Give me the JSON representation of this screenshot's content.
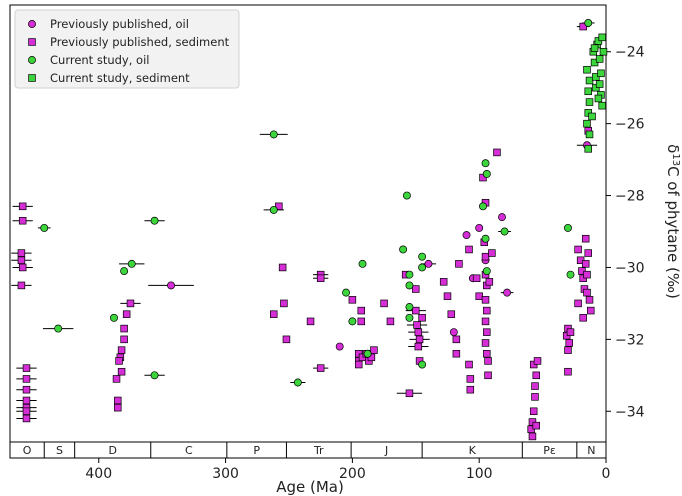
{
  "chart_data": {
    "type": "scatter",
    "title": "",
    "xlabel": "Age (Ma)",
    "ylabel": "δ13C of phytane (‰)",
    "ylabel_parts": {
      "pre": "δ",
      "sup": "13",
      "post": "C of phytane (",
      "unit": "‰",
      "close": ")"
    },
    "xlim": [
      470,
      0
    ],
    "ylim": [
      -35.3,
      -22.7
    ],
    "x_ticks": [
      {
        "value": 400,
        "label": "400"
      },
      {
        "value": 300,
        "label": "300"
      },
      {
        "value": 200,
        "label": "200"
      },
      {
        "value": 100,
        "label": "100"
      },
      {
        "value": 0,
        "label": "0"
      }
    ],
    "y_ticks": [
      {
        "value": -24,
        "label": "−24"
      },
      {
        "value": -26,
        "label": "−26"
      },
      {
        "value": -28,
        "label": "−28"
      },
      {
        "value": -30,
        "label": "−30"
      },
      {
        "value": -32,
        "label": "−32"
      },
      {
        "value": -34,
        "label": "−34"
      }
    ],
    "y_axis_side": "right",
    "grid": false,
    "legend_position": "top-left",
    "colors": {
      "previous": "#d62ed6",
      "current": "#3cd63c",
      "edge": "#000000"
    },
    "periods": [
      {
        "label": "O",
        "start": 470,
        "end": 443
      },
      {
        "label": "S",
        "start": 443,
        "end": 419
      },
      {
        "label": "D",
        "start": 419,
        "end": 359
      },
      {
        "label": "C",
        "start": 359,
        "end": 299
      },
      {
        "label": "P",
        "start": 299,
        "end": 252
      },
      {
        "label": "Tr",
        "start": 252,
        "end": 201
      },
      {
        "label": "J",
        "start": 201,
        "end": 145
      },
      {
        "label": "K",
        "start": 145,
        "end": 66
      },
      {
        "label": "Pε",
        "start": 66,
        "end": 23
      },
      {
        "label": "N",
        "start": 23,
        "end": 0
      }
    ],
    "series": [
      {
        "name": "Previously published, oil",
        "marker": "circle",
        "color": "#d62ed6",
        "points": [
          {
            "x": 343,
            "y": -30.5,
            "xerr": 18
          },
          {
            "x": 210,
            "y": -32.2
          },
          {
            "x": 140,
            "y": -29.9,
            "xerr": 6
          },
          {
            "x": 120,
            "y": -31.8
          },
          {
            "x": 110,
            "y": -29.1
          },
          {
            "x": 105,
            "y": -30.3
          },
          {
            "x": 100,
            "y": -28.9
          },
          {
            "x": 95,
            "y": -29.8
          },
          {
            "x": 82,
            "y": -28.6
          },
          {
            "x": 78,
            "y": -30.7,
            "xerr": 5
          },
          {
            "x": 15,
            "y": -26.6,
            "xerr": 8
          }
        ]
      },
      {
        "name": "Previously published, sediment",
        "marker": "square",
        "color": "#d62ed6",
        "points": [
          {
            "x": 460,
            "y": -28.3,
            "xerr": 8
          },
          {
            "x": 460,
            "y": -28.7,
            "xerr": 8
          },
          {
            "x": 461,
            "y": -29.6,
            "xerr": 8
          },
          {
            "x": 461,
            "y": -29.8,
            "xerr": 8
          },
          {
            "x": 460,
            "y": -30.0,
            "xerr": 8
          },
          {
            "x": 461,
            "y": -30.5,
            "xerr": 8
          },
          {
            "x": 457,
            "y": -32.8,
            "xerr": 8
          },
          {
            "x": 457,
            "y": -33.1,
            "xerr": 8
          },
          {
            "x": 457,
            "y": -33.4,
            "xerr": 8
          },
          {
            "x": 457,
            "y": -33.7,
            "xerr": 8
          },
          {
            "x": 457,
            "y": -33.9,
            "xerr": 8
          },
          {
            "x": 457,
            "y": -34.0,
            "xerr": 8
          },
          {
            "x": 457,
            "y": -34.2,
            "xerr": 8
          },
          {
            "x": 375,
            "y": -31.0,
            "xerr": 8
          },
          {
            "x": 378,
            "y": -31.3
          },
          {
            "x": 380,
            "y": -31.7
          },
          {
            "x": 380,
            "y": -32.0
          },
          {
            "x": 382,
            "y": -32.3
          },
          {
            "x": 383,
            "y": -32.5
          },
          {
            "x": 384,
            "y": -32.6
          },
          {
            "x": 382,
            "y": -32.9
          },
          {
            "x": 386,
            "y": -33.1
          },
          {
            "x": 385,
            "y": -33.7
          },
          {
            "x": 385,
            "y": -33.9
          },
          {
            "x": 262,
            "y": -31.3
          },
          {
            "x": 258,
            "y": -28.3
          },
          {
            "x": 255,
            "y": -30.0
          },
          {
            "x": 254,
            "y": -31.0
          },
          {
            "x": 252,
            "y": -32.0
          },
          {
            "x": 233,
            "y": -31.5
          },
          {
            "x": 225,
            "y": -30.2,
            "xerr": 6
          },
          {
            "x": 225,
            "y": -30.3,
            "xerr": 6
          },
          {
            "x": 225,
            "y": -32.8,
            "xerr": 6
          },
          {
            "x": 200,
            "y": -30.9
          },
          {
            "x": 193,
            "y": -31.2
          },
          {
            "x": 193,
            "y": -31.5
          },
          {
            "x": 195,
            "y": -32.4
          },
          {
            "x": 195,
            "y": -32.6
          },
          {
            "x": 195,
            "y": -32.7
          },
          {
            "x": 192,
            "y": -32.5
          },
          {
            "x": 189,
            "y": -32.4
          },
          {
            "x": 187,
            "y": -32.6
          },
          {
            "x": 185,
            "y": -32.5
          },
          {
            "x": 183,
            "y": -32.3
          },
          {
            "x": 175,
            "y": -31.0
          },
          {
            "x": 170,
            "y": -31.5
          },
          {
            "x": 158,
            "y": -30.2
          },
          {
            "x": 155,
            "y": -33.5,
            "xerr": 10
          },
          {
            "x": 150,
            "y": -30.6
          },
          {
            "x": 150,
            "y": -31.2,
            "xerr": 8
          },
          {
            "x": 149,
            "y": -31.6,
            "xerr": 8
          },
          {
            "x": 148,
            "y": -31.8,
            "xerr": 8
          },
          {
            "x": 147,
            "y": -32.0,
            "xerr": 8
          },
          {
            "x": 148,
            "y": -32.2,
            "xerr": 8
          },
          {
            "x": 147,
            "y": -32.6
          },
          {
            "x": 145,
            "y": -31.4
          },
          {
            "x": 128,
            "y": -30.4
          },
          {
            "x": 125,
            "y": -30.8
          },
          {
            "x": 122,
            "y": -31.3
          },
          {
            "x": 118,
            "y": -32.0
          },
          {
            "x": 118,
            "y": -32.4
          },
          {
            "x": 116,
            "y": -29.9
          },
          {
            "x": 108,
            "y": -29.5
          },
          {
            "x": 108,
            "y": -32.7
          },
          {
            "x": 107,
            "y": -33.1
          },
          {
            "x": 107,
            "y": -33.4
          },
          {
            "x": 102,
            "y": -30.3
          },
          {
            "x": 100,
            "y": -30.8
          },
          {
            "x": 97,
            "y": -27.5
          },
          {
            "x": 95,
            "y": -28.2
          },
          {
            "x": 96,
            "y": -29.3
          },
          {
            "x": 95,
            "y": -29.7
          },
          {
            "x": 95,
            "y": -30.2
          },
          {
            "x": 94,
            "y": -30.5
          },
          {
            "x": 95,
            "y": -30.9
          },
          {
            "x": 94,
            "y": -31.2
          },
          {
            "x": 95,
            "y": -31.5
          },
          {
            "x": 94,
            "y": -31.8
          },
          {
            "x": 95,
            "y": -32.1
          },
          {
            "x": 94,
            "y": -32.4
          },
          {
            "x": 93,
            "y": -32.6
          },
          {
            "x": 93,
            "y": -33.0
          },
          {
            "x": 86,
            "y": -26.8
          },
          {
            "x": 90,
            "y": -29.6
          },
          {
            "x": 92,
            "y": -30.4
          },
          {
            "x": 57,
            "y": -32.7
          },
          {
            "x": 55,
            "y": -33.0
          },
          {
            "x": 56,
            "y": -33.3
          },
          {
            "x": 56,
            "y": -33.6
          },
          {
            "x": 57,
            "y": -34.0
          },
          {
            "x": 58,
            "y": -34.3
          },
          {
            "x": 59,
            "y": -34.5
          },
          {
            "x": 58,
            "y": -34.7
          },
          {
            "x": 55,
            "y": -34.4
          },
          {
            "x": 54,
            "y": -32.6
          },
          {
            "x": 30,
            "y": -31.7
          },
          {
            "x": 31,
            "y": -31.9
          },
          {
            "x": 29,
            "y": -32.1
          },
          {
            "x": 30,
            "y": -32.3
          },
          {
            "x": 30,
            "y": -32.9
          },
          {
            "x": 28,
            "y": -31.8
          },
          {
            "x": 22,
            "y": -29.5
          },
          {
            "x": 20,
            "y": -29.8
          },
          {
            "x": 19,
            "y": -30.1
          },
          {
            "x": 18,
            "y": -30.3
          },
          {
            "x": 17,
            "y": -30.6
          },
          {
            "x": 16,
            "y": -29.2
          },
          {
            "x": 16,
            "y": -29.9
          },
          {
            "x": 15,
            "y": -30.2
          },
          {
            "x": 15,
            "y": -30.7
          },
          {
            "x": 14,
            "y": -29.6
          },
          {
            "x": 13,
            "y": -30.9
          },
          {
            "x": 12,
            "y": -31.2
          },
          {
            "x": 22,
            "y": -31.0
          },
          {
            "x": 18,
            "y": -31.4
          },
          {
            "x": 14,
            "y": -26.2
          },
          {
            "x": 18,
            "y": -23.3,
            "xerr": 5
          }
        ]
      },
      {
        "name": "Current study, oil",
        "marker": "circle",
        "color": "#3cd63c",
        "points": [
          {
            "x": 443,
            "y": -28.9,
            "xerr": 5
          },
          {
            "x": 432,
            "y": -31.7,
            "xerr": 12
          },
          {
            "x": 388,
            "y": -31.4
          },
          {
            "x": 380,
            "y": -30.1
          },
          {
            "x": 374,
            "y": -29.9,
            "xerr": 10
          },
          {
            "x": 356,
            "y": -28.7,
            "xerr": 8
          },
          {
            "x": 356,
            "y": -33.0,
            "xerr": 8
          },
          {
            "x": 262,
            "y": -26.3,
            "xerr": 11
          },
          {
            "x": 262,
            "y": -28.4,
            "xerr": 8
          },
          {
            "x": 243,
            "y": -33.2,
            "xerr": 6
          },
          {
            "x": 205,
            "y": -30.7
          },
          {
            "x": 200,
            "y": -31.5
          },
          {
            "x": 188,
            "y": -32.4
          },
          {
            "x": 192,
            "y": -29.9
          },
          {
            "x": 160,
            "y": -29.5
          },
          {
            "x": 157,
            "y": -28.0
          },
          {
            "x": 155,
            "y": -30.2
          },
          {
            "x": 155,
            "y": -30.5
          },
          {
            "x": 155,
            "y": -31.1
          },
          {
            "x": 155,
            "y": -31.4
          },
          {
            "x": 145,
            "y": -29.7
          },
          {
            "x": 145,
            "y": -30.0
          },
          {
            "x": 145,
            "y": -32.7
          },
          {
            "x": 97,
            "y": -28.3
          },
          {
            "x": 95,
            "y": -27.1
          },
          {
            "x": 94,
            "y": -27.4
          },
          {
            "x": 95,
            "y": -29.2
          },
          {
            "x": 94,
            "y": -30.1
          },
          {
            "x": 80,
            "y": -29.0,
            "xerr": 5
          },
          {
            "x": 30,
            "y": -28.9
          },
          {
            "x": 28,
            "y": -30.2
          },
          {
            "x": 14,
            "y": -23.2,
            "xerr": 5
          }
        ]
      },
      {
        "name": "Current study, sediment",
        "marker": "square",
        "color": "#3cd63c",
        "points": [
          {
            "x": 15,
            "y": -24.5
          },
          {
            "x": 13,
            "y": -24.8
          },
          {
            "x": 14,
            "y": -25.1
          },
          {
            "x": 13,
            "y": -25.4
          },
          {
            "x": 14,
            "y": -25.7
          },
          {
            "x": 15,
            "y": -26.0
          },
          {
            "x": 13,
            "y": -26.3
          },
          {
            "x": 14,
            "y": -26.7
          },
          {
            "x": 10,
            "y": -24.0
          },
          {
            "x": 9,
            "y": -24.3
          },
          {
            "x": 8,
            "y": -24.7
          },
          {
            "x": 8,
            "y": -25.0
          },
          {
            "x": 7,
            "y": -23.8
          },
          {
            "x": 6,
            "y": -23.7
          },
          {
            "x": 5,
            "y": -24.2
          },
          {
            "x": 4,
            "y": -24.6
          },
          {
            "x": 4,
            "y": -25.2
          },
          {
            "x": 3,
            "y": -25.5
          },
          {
            "x": 3,
            "y": -23.6
          },
          {
            "x": 2,
            "y": -24.0
          },
          {
            "x": 11,
            "y": -25.8
          },
          {
            "x": 9,
            "y": -23.9
          },
          {
            "x": 6,
            "y": -25.3
          },
          {
            "x": 5,
            "y": -24.9
          }
        ]
      }
    ]
  }
}
